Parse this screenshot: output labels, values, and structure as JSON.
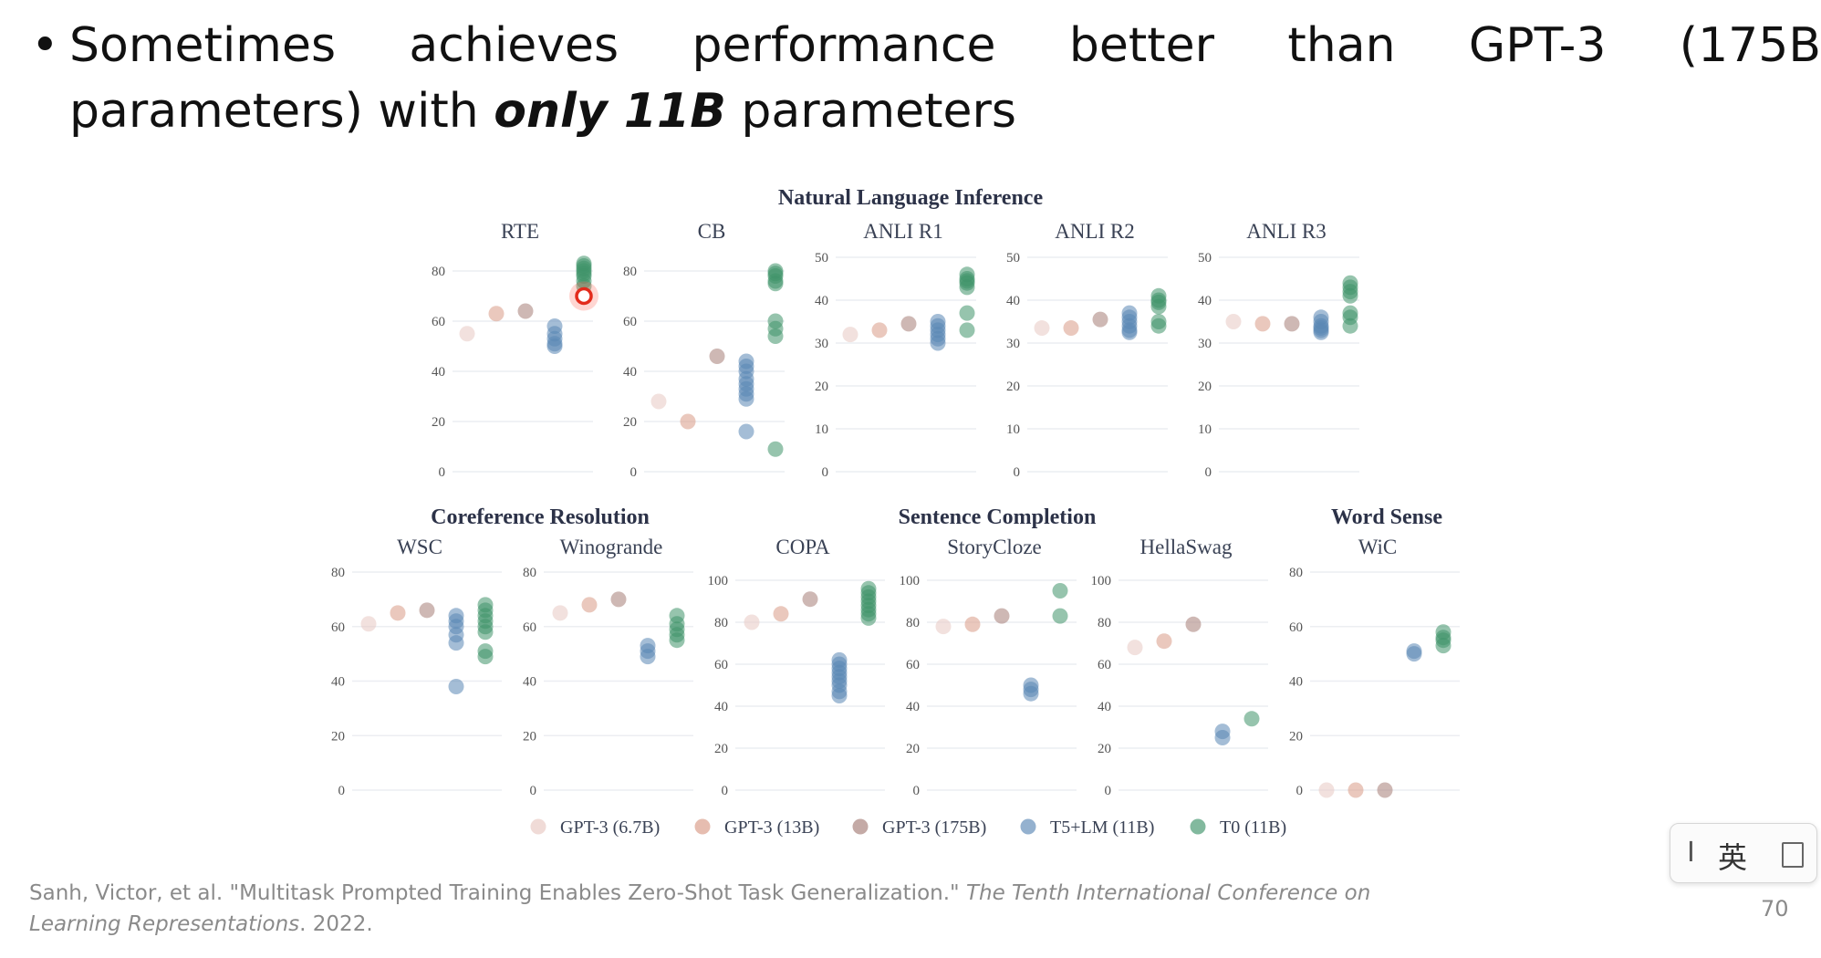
{
  "slide": {
    "bullet": {
      "symbol": "•",
      "line1_words": [
        "Sometimes",
        "achieves",
        "performance",
        "better",
        "than",
        "GPT-3",
        "(175B"
      ],
      "line2_start": "parameters) with ",
      "emphasis": "only 11B",
      "line2_end": " parameters"
    },
    "citation": {
      "authors": "Sanh, Victor, et al. \"Multitask Prompted Training Enables Zero-Shot Task Generalization.\"",
      "venue": "The Tenth International Conference on Learning Representations",
      "year": ". 2022."
    },
    "page_number": "70",
    "ime": {
      "cursor": "I",
      "lang": "英"
    }
  },
  "chart_data": {
    "type": "scatter",
    "group_titles": [
      "Natural Language Inference",
      "Coreference Resolution",
      "Sentence Completion",
      "Word Sense"
    ],
    "series": [
      {
        "name": "GPT-3 (6.7B)",
        "color": "#e8c8c2"
      },
      {
        "name": "GPT-3 (13B)",
        "color": "#d99a86"
      },
      {
        "name": "GPT-3 (175B)",
        "color": "#a57d76"
      },
      {
        "name": "T5+LM (11B)",
        "color": "#5a87b5"
      },
      {
        "name": "T0 (11B)",
        "color": "#3f946a"
      }
    ],
    "panels": [
      {
        "title": "RTE",
        "ymax": 80,
        "ticks": [
          0,
          20,
          40,
          60,
          80
        ],
        "values": [
          [
            55
          ],
          [
            63
          ],
          [
            64
          ],
          [
            58,
            55,
            53,
            51,
            50
          ],
          [
            83,
            82,
            81,
            80,
            79,
            78,
            76,
            74,
            70
          ]
        ]
      },
      {
        "title": "CB",
        "ymax": 80,
        "ticks": [
          0,
          20,
          40,
          60,
          80
        ],
        "values": [
          [
            28
          ],
          [
            20
          ],
          [
            46
          ],
          [
            44,
            42,
            40,
            37,
            35,
            33,
            31,
            29,
            16
          ],
          [
            80,
            79,
            78,
            76,
            75,
            60,
            57,
            54,
            9
          ]
        ]
      },
      {
        "title": "ANLI R1",
        "ymax": 50,
        "ticks": [
          0,
          10,
          20,
          30,
          40,
          50
        ],
        "values": [
          [
            32
          ],
          [
            33
          ],
          [
            34.5
          ],
          [
            35,
            34,
            33,
            32,
            31,
            30
          ],
          [
            46,
            45,
            44.5,
            44,
            43,
            37,
            33
          ]
        ]
      },
      {
        "title": "ANLI R2",
        "ymax": 50,
        "ticks": [
          0,
          10,
          20,
          30,
          40,
          50
        ],
        "values": [
          [
            33.5
          ],
          [
            33.5
          ],
          [
            35.5
          ],
          [
            37,
            36,
            35,
            34,
            33,
            32.5
          ],
          [
            41,
            40,
            39.5,
            38.5,
            35,
            34
          ]
        ]
      },
      {
        "title": "ANLI R3",
        "ymax": 50,
        "ticks": [
          0,
          10,
          20,
          30,
          40,
          50
        ],
        "values": [
          [
            35
          ],
          [
            34.5
          ],
          [
            34.5
          ],
          [
            36,
            35,
            34,
            33.5,
            33,
            32.5
          ],
          [
            44,
            43,
            42,
            41,
            37,
            36,
            34
          ]
        ]
      },
      {
        "title": "WSC",
        "ymax": 80,
        "ticks": [
          0,
          20,
          40,
          60,
          80
        ],
        "values": [
          [
            61
          ],
          [
            65
          ],
          [
            66
          ],
          [
            64,
            62,
            60,
            57,
            54,
            38
          ],
          [
            68,
            66,
            64,
            62,
            60,
            58,
            51,
            49
          ]
        ]
      },
      {
        "title": "Winogrande",
        "ymax": 80,
        "ticks": [
          0,
          20,
          40,
          60,
          80
        ],
        "values": [
          [
            65
          ],
          [
            68
          ],
          [
            70
          ],
          [
            53,
            51,
            49
          ],
          [
            64,
            61,
            59,
            57,
            55
          ]
        ]
      },
      {
        "title": "COPA",
        "ymax": 100,
        "ticks": [
          0,
          20,
          40,
          60,
          80,
          100
        ],
        "values": [
          [
            80
          ],
          [
            84
          ],
          [
            91
          ],
          [
            62,
            60,
            58,
            56,
            54,
            52,
            50,
            47,
            45
          ],
          [
            96,
            94,
            92,
            90,
            88,
            86,
            84,
            82
          ]
        ]
      },
      {
        "title": "StoryCloze",
        "ymax": 100,
        "ticks": [
          0,
          20,
          40,
          60,
          80,
          100
        ],
        "values": [
          [
            78
          ],
          [
            79
          ],
          [
            83
          ],
          [
            50,
            48,
            46
          ],
          [
            95,
            83
          ]
        ]
      },
      {
        "title": "HellaSwag",
        "ymax": 100,
        "ticks": [
          0,
          20,
          40,
          60,
          80,
          100
        ],
        "values": [
          [
            68
          ],
          [
            71
          ],
          [
            79
          ],
          [
            28,
            25
          ],
          [
            34
          ]
        ]
      },
      {
        "title": "WiC",
        "ymax": 80,
        "ticks": [
          0,
          20,
          40,
          60,
          80
        ],
        "values": [
          [
            0
          ],
          [
            0
          ],
          [
            0
          ],
          [
            51,
            50
          ],
          [
            58,
            56,
            55,
            53
          ]
        ]
      }
    ]
  }
}
